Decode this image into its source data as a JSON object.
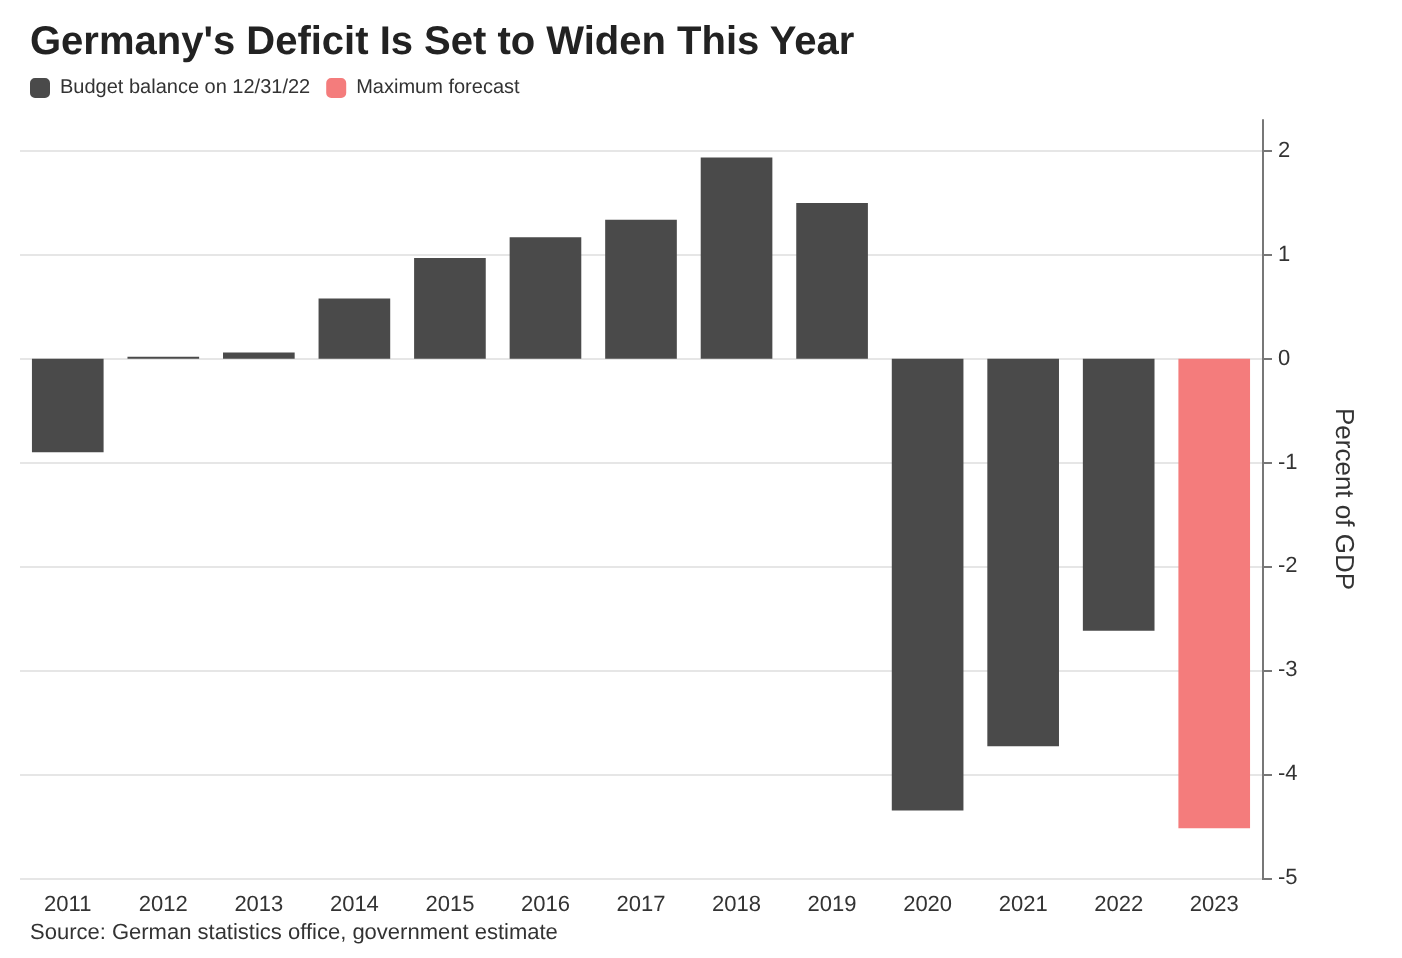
{
  "chart_data": {
    "type": "bar",
    "title": "Germany's Deficit Is Set to Widen This Year",
    "ylabel": "Percent of GDP",
    "categories": [
      "2011",
      "2012",
      "2013",
      "2014",
      "2015",
      "2016",
      "2017",
      "2018",
      "2019",
      "2020",
      "2021",
      "2022",
      "2023"
    ],
    "series": [
      {
        "name": "Budget balance on 12/31/22",
        "color": "#4a4a4a",
        "values": [
          -0.9,
          0.02,
          0.06,
          0.58,
          0.97,
          1.17,
          1.34,
          1.94,
          1.5,
          -4.35,
          -3.73,
          -2.62,
          null
        ]
      },
      {
        "name": "Maximum forecast",
        "color": "#f47c7c",
        "values": [
          null,
          null,
          null,
          null,
          null,
          null,
          null,
          null,
          null,
          null,
          null,
          null,
          -4.52
        ]
      }
    ],
    "ylim": [
      -5,
      2.3
    ],
    "yticks": [
      -5,
      -4,
      -3,
      -2,
      -1,
      0,
      1,
      2
    ],
    "grid": "y",
    "legend": "top left",
    "annotations": [
      "Source: German statistics office, government estimate"
    ]
  }
}
